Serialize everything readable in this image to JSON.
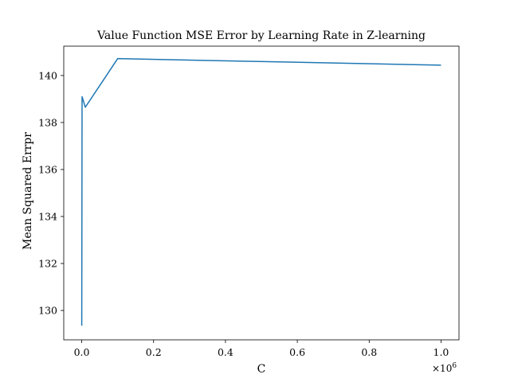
{
  "chart_data": {
    "type": "line",
    "title": "Value Function MSE Error by Learning Rate in Z-learning",
    "xlabel": "C",
    "ylabel": "Mean Squared Errpr",
    "x_offset_label": "×10",
    "x_offset_exponent": "6",
    "xlim": [
      -0.05,
      1.05
    ],
    "ylim": [
      128.75,
      141.25
    ],
    "xticks": [
      0.0,
      0.2,
      0.4,
      0.6,
      0.8,
      1.0
    ],
    "xtick_labels": [
      "0.0",
      "0.2",
      "0.4",
      "0.6",
      "0.8",
      "1.0"
    ],
    "yticks": [
      130,
      132,
      134,
      136,
      138,
      140
    ],
    "ytick_labels": [
      "130",
      "132",
      "134",
      "136",
      "138",
      "140"
    ],
    "grid": false,
    "series": [
      {
        "color": "#1f77b4",
        "x": [
          0.0001,
          0.001,
          0.01,
          0.1,
          1.0
        ],
        "y": [
          129.35,
          139.1,
          138.65,
          140.72,
          140.44
        ]
      }
    ]
  }
}
